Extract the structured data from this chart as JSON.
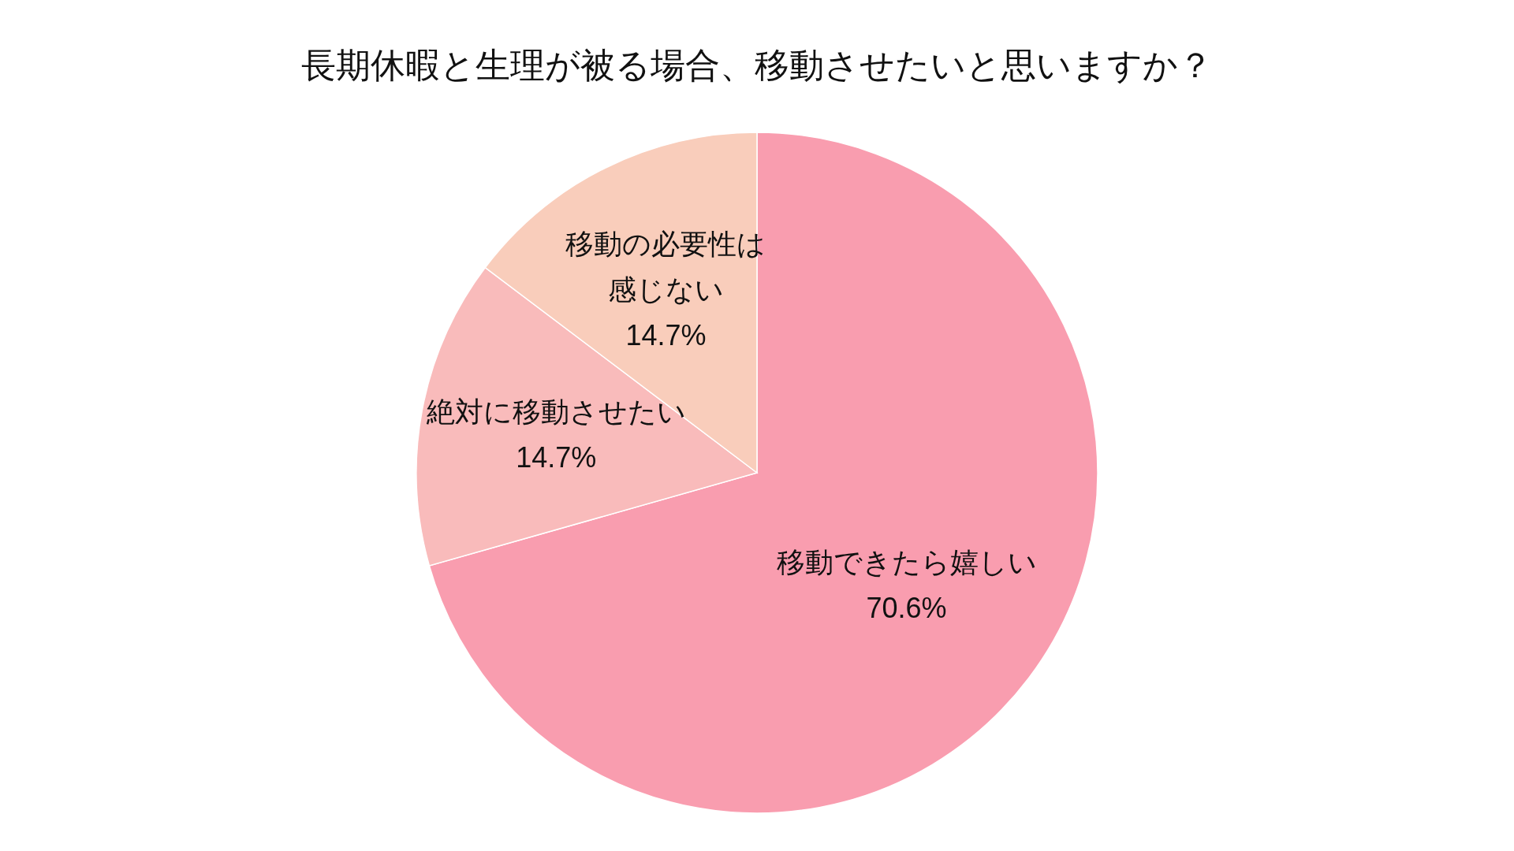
{
  "chart_data": {
    "type": "pie",
    "title": "長期休暇と生理が被る場合、移動させたいと思いますか？",
    "categories": [
      "移動できたら嬉しい",
      "絶対に移動させたい",
      "移動の必要性は感じない"
    ],
    "values": [
      70.6,
      14.7,
      14.7
    ],
    "colors": [
      "#f99daf",
      "#f9bbbb",
      "#f9cdbb"
    ],
    "value_labels": [
      "70.6%",
      "14.7%",
      "14.7%"
    ]
  }
}
